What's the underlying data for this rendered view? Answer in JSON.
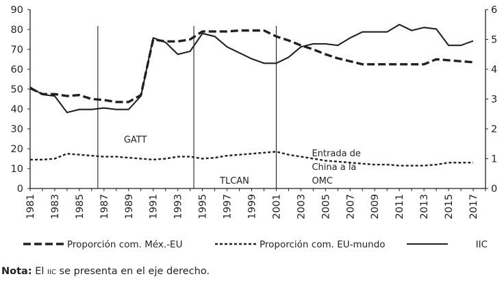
{
  "chart_data": {
    "type": "line",
    "title": "",
    "xlabel": "",
    "ylabel": "",
    "ylim": [
      0,
      90
    ],
    "y2lim": [
      0,
      6
    ],
    "y_ticks": [
      "0",
      "10",
      "20",
      "30",
      "40",
      "50",
      "60",
      "70",
      "80",
      "90"
    ],
    "y2_ticks": [
      "0",
      "1",
      "2",
      "3",
      "4",
      "5",
      "6"
    ],
    "x_ticks": [
      "1981",
      "1983",
      "1985",
      "1987",
      "1989",
      "1991",
      "1993",
      "1995",
      "1997",
      "1999",
      "2001",
      "2003",
      "2005",
      "2007",
      "2009",
      "2011",
      "2013",
      "2015",
      "2017"
    ],
    "grid": false,
    "legend_position": "bottom",
    "series": [
      {
        "name": "Proporción com. Méx.-EU",
        "axis": "left",
        "style": "dashed",
        "color": "#231f20",
        "x": [
          1981,
          1982,
          1983,
          1984,
          1985,
          1986,
          1987,
          1988,
          1989,
          1990,
          1991,
          1992,
          1993,
          1994,
          1995,
          1996,
          1997,
          1998,
          1999,
          2000,
          2001,
          2002,
          2003,
          2004,
          2005,
          2006,
          2007,
          2008,
          2009,
          2010,
          2011,
          2012,
          2013,
          2014,
          2015,
          2016,
          2017
        ],
        "values": [
          50.5,
          47.5,
          47.5,
          46.5,
          47,
          45,
          44.5,
          43.5,
          43.5,
          47,
          75,
          74,
          74,
          75,
          79,
          79,
          79,
          79.5,
          79.5,
          79.5,
          76.5,
          74.5,
          72,
          70,
          67.5,
          65.5,
          64,
          62.5,
          62.5,
          62.5,
          62.5,
          62.5,
          62.5,
          65,
          64.5,
          64,
          63.5
        ]
      },
      {
        "name": "Proporción com. EU-mundo",
        "axis": "left",
        "style": "dotted",
        "color": "#231f20",
        "x": [
          1981,
          1982,
          1983,
          1984,
          1985,
          1986,
          1987,
          1988,
          1989,
          1990,
          1991,
          1992,
          1993,
          1994,
          1995,
          1996,
          1997,
          1998,
          1999,
          2000,
          2001,
          2002,
          2003,
          2004,
          2005,
          2006,
          2007,
          2008,
          2009,
          2010,
          2011,
          2012,
          2013,
          2014,
          2015,
          2016,
          2017
        ],
        "values": [
          14.5,
          14.5,
          15,
          17.5,
          17,
          16.5,
          16,
          16,
          15.5,
          15,
          14.5,
          15,
          16,
          16,
          15,
          15.5,
          16.5,
          17,
          17.5,
          18,
          18.5,
          17,
          16,
          15,
          14,
          13.5,
          13,
          12.5,
          12,
          12,
          11.5,
          11.5,
          11.5,
          12,
          13,
          13,
          13
        ]
      },
      {
        "name": "IIC",
        "axis": "right",
        "style": "solid",
        "color": "#231f20",
        "x": [
          1981,
          1982,
          1983,
          1984,
          1985,
          1986,
          1987,
          1988,
          1989,
          1990,
          1991,
          1992,
          1993,
          1994,
          1995,
          1996,
          1997,
          1998,
          1999,
          2000,
          2001,
          2002,
          2003,
          2004,
          2005,
          2006,
          2007,
          2008,
          2009,
          2010,
          2011,
          2012,
          2013,
          2014,
          2015,
          2016,
          2017
        ],
        "values": [
          3.4,
          3.15,
          3.1,
          2.55,
          2.65,
          2.65,
          2.7,
          2.65,
          2.65,
          3.1,
          5.05,
          4.9,
          4.5,
          4.6,
          5.2,
          5.1,
          4.75,
          4.55,
          4.35,
          4.2,
          4.2,
          4.4,
          4.75,
          4.85,
          4.85,
          4.8,
          5.05,
          5.25,
          5.25,
          5.25,
          5.5,
          5.3,
          5.4,
          5.35,
          4.8,
          4.8,
          4.95
        ]
      }
    ],
    "events": [
      {
        "x": 1986.5,
        "label_lines": [
          "GATT"
        ]
      },
      {
        "x": 1994.3,
        "label_lines": [
          "TLCAN"
        ]
      },
      {
        "x": 2001,
        "label_lines": [
          "Entrada de",
          "China a la",
          "OMC"
        ]
      }
    ]
  },
  "note": {
    "bold": "Nota:",
    "pre": " El ",
    "smallcaps": "iic",
    "post": " se presenta en el eje derecho."
  }
}
